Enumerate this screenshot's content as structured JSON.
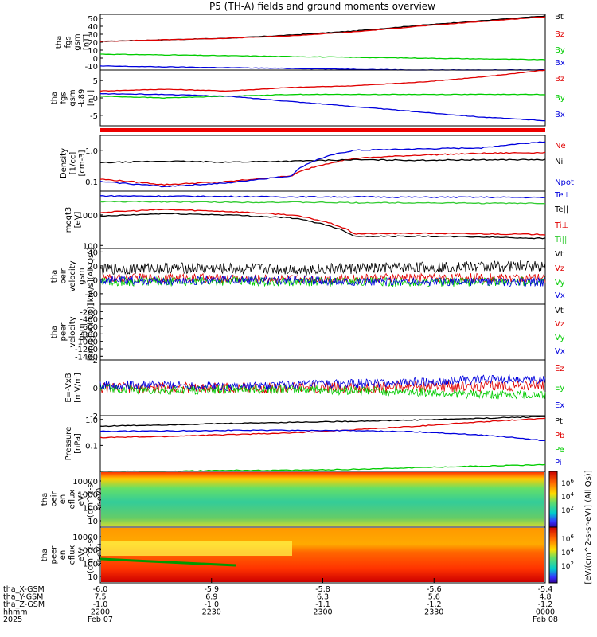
{
  "title": "P5 (TH-A) fields and ground moments overview",
  "colors": {
    "black": "#000000",
    "red": "#e00000",
    "green": "#00cc00",
    "blue": "#0000dd",
    "lime": "#33cc33"
  },
  "chart_data": [
    {
      "type": "line",
      "ylabel": [
        "tha",
        "fgs",
        "gsm",
        "[nT]"
      ],
      "yticks": [
        "50",
        "40",
        "30",
        "20",
        "10",
        "0",
        "-10"
      ],
      "ylim": [
        -15,
        55
      ],
      "series": [
        {
          "name": "Bt",
          "color": "black",
          "values": [
            21,
            23,
            25,
            29,
            34,
            41,
            47,
            53
          ]
        },
        {
          "name": "Bz",
          "color": "red",
          "values": [
            21,
            23,
            25,
            28,
            33,
            40,
            46,
            52
          ]
        },
        {
          "name": "By",
          "color": "green",
          "values": [
            5,
            4,
            3,
            2,
            1,
            0,
            -1,
            -2
          ]
        },
        {
          "name": "Bx",
          "color": "blue",
          "values": [
            -10,
            -11,
            -12,
            -13,
            -14,
            -15,
            -15,
            -15
          ]
        }
      ]
    },
    {
      "type": "line",
      "ylabel": [
        "tha",
        "fgs",
        "gsm",
        "-b89",
        "[nT]"
      ],
      "yticks": [
        "5",
        "0",
        "-5"
      ],
      "ylim": [
        -8,
        8
      ],
      "series": [
        {
          "name": "Bz",
          "color": "red",
          "values": [
            2,
            2.5,
            2,
            3,
            3.5,
            4.5,
            6,
            8
          ]
        },
        {
          "name": "By",
          "color": "green",
          "values": [
            0.5,
            0,
            0.5,
            1,
            1,
            1,
            1,
            1
          ]
        },
        {
          "name": "Bx",
          "color": "blue",
          "values": [
            1.2,
            1,
            0.5,
            -1,
            -2.5,
            -4,
            -5.5,
            -6.5
          ]
        }
      ]
    },
    {
      "type": "line",
      "log": true,
      "ylabel": [
        "Density",
        "[1/cc]",
        "[cm-3]"
      ],
      "yticks": [
        "1.0",
        "0.1"
      ],
      "ylim": [
        0.05,
        3
      ],
      "series": [
        {
          "name": "Ne",
          "color": "red",
          "values": [
            0.12,
            0.08,
            0.1,
            0.15,
            0.55,
            0.7,
            0.8,
            0.85
          ]
        },
        {
          "name": "Ni",
          "color": "black",
          "values": [
            0.4,
            0.45,
            0.42,
            0.45,
            0.5,
            0.48,
            0.5,
            0.5
          ]
        },
        {
          "name": "Npot",
          "color": "blue",
          "values": [
            0.1,
            0.07,
            0.09,
            0.15,
            1.0,
            1.1,
            1.2,
            1.9
          ]
        }
      ]
    },
    {
      "type": "line",
      "log": true,
      "ylabel": [
        "moqt3",
        "[eV]"
      ],
      "yticks": [
        "1000",
        "100"
      ],
      "ylim": [
        80,
        6000
      ],
      "series": [
        {
          "name": "Te⊥",
          "color": "blue",
          "values": [
            4200,
            4100,
            4000,
            3900,
            3900,
            3800,
            3800,
            3700
          ]
        },
        {
          "name": "Te||",
          "color": "black",
          "values": [
            900,
            1100,
            1000,
            800,
            200,
            200,
            190,
            170
          ]
        },
        {
          "name": "Ti⊥",
          "color": "red",
          "values": [
            1200,
            1500,
            1300,
            1000,
            240,
            250,
            240,
            230
          ]
        },
        {
          "name": "Ti||",
          "color": "lime",
          "values": [
            2700,
            2700,
            2600,
            2600,
            2500,
            2500,
            2400,
            2400
          ]
        }
      ]
    },
    {
      "type": "line",
      "ylabel": [
        "tha",
        "peir",
        "velocity",
        "gsm",
        "[km/s](All Qs)]"
      ],
      "yticks": [
        "40",
        "20",
        "0",
        "-20"
      ],
      "ylim": [
        -35,
        45
      ],
      "series": [
        {
          "name": "Vt",
          "color": "black",
          "values": [
            15,
            17,
            16,
            15,
            16,
            18,
            19,
            20
          ]
        },
        {
          "name": "Vz",
          "color": "red",
          "values": [
            2,
            3,
            2,
            1,
            2,
            3,
            3,
            2
          ]
        },
        {
          "name": "Vy",
          "color": "green",
          "values": [
            -2,
            -3,
            -2,
            -3,
            -2,
            -4,
            -3,
            -2
          ]
        },
        {
          "name": "Vx",
          "color": "blue",
          "values": [
            0,
            -2,
            0,
            -1,
            -2,
            -3,
            -4,
            -3
          ]
        }
      ]
    },
    {
      "type": "line",
      "ylabel": [
        "tha",
        "peer",
        "velocity",
        "gsm",
        "[km/s](All Qs)]"
      ],
      "yticks": [
        "-200",
        "-400",
        "-600",
        "-800",
        "-1000",
        "-1200",
        "-1400"
      ],
      "ylim": [
        -1500,
        0
      ],
      "series": [
        {
          "name": "Vt",
          "color": "black",
          "values": []
        },
        {
          "name": "Vz",
          "color": "red",
          "values": []
        },
        {
          "name": "Vy",
          "color": "green",
          "values": []
        },
        {
          "name": "Vx",
          "color": "blue",
          "values": []
        }
      ]
    },
    {
      "type": "line",
      "ylabel": [
        "E=-VxB",
        "[mV/m]"
      ],
      "yticks": [
        "2",
        "0",
        "-2"
      ],
      "ylim": [
        -2,
        2
      ],
      "series": [
        {
          "name": "Ez",
          "color": "red",
          "values": [
            0,
            0,
            0,
            0,
            0,
            0.1,
            0.1,
            0.2
          ]
        },
        {
          "name": "Ey",
          "color": "green",
          "values": [
            0,
            -0.2,
            -0.1,
            -0.1,
            -0.2,
            -0.3,
            -0.5,
            -0.5
          ]
        },
        {
          "name": "Ex",
          "color": "blue",
          "values": [
            0.2,
            0.2,
            0.1,
            0.2,
            0.3,
            0.4,
            0.6,
            0.6
          ]
        }
      ]
    },
    {
      "type": "line",
      "log": true,
      "ylabel": [
        "Pressure",
        "[nPa]"
      ],
      "yticks": [
        "1.0",
        "0.1"
      ],
      "ylim": [
        0.01,
        1.4
      ],
      "series": [
        {
          "name": "Pt",
          "color": "black",
          "values": [
            0.55,
            0.62,
            0.7,
            0.78,
            0.85,
            0.95,
            1.1,
            1.3
          ]
        },
        {
          "name": "Pb",
          "color": "red",
          "values": [
            0.2,
            0.22,
            0.26,
            0.3,
            0.4,
            0.55,
            0.8,
            1.1
          ]
        },
        {
          "name": "Pe",
          "color": "green",
          "values": [
            0.01,
            0.01,
            0.011,
            0.011,
            0.012,
            0.014,
            0.016,
            0.018
          ]
        },
        {
          "name": "Pi",
          "color": "blue",
          "values": [
            0.35,
            0.36,
            0.38,
            0.38,
            0.37,
            0.33,
            0.25,
            0.15
          ]
        }
      ]
    },
    {
      "type": "heatmap",
      "ylabel": [
        "tha",
        "peir",
        "en",
        "eflux",
        "eV/",
        "(cm^2-s-",
        "sr-eV)"
      ],
      "yticks": [
        "10000",
        "1000",
        "100",
        "10"
      ]
    },
    {
      "type": "heatmap",
      "ylabel": [
        "tha",
        "peer",
        "en",
        "eflux",
        "eV/",
        "(cm^2-s-",
        "sr-eV)"
      ],
      "yticks": [
        "10000",
        "1000",
        "100",
        "10"
      ]
    }
  ],
  "colorbar": {
    "label": "[eV/(cm^2-s-sr-eV)] (All Qs)]",
    "ticks": [
      "10^6",
      "10^4",
      "10^2"
    ]
  },
  "xaxis": {
    "rows": [
      {
        "label": "tha_X-GSM",
        "values": [
          "-6.0",
          "-5.9",
          "-5.8",
          "-5.6",
          "-5.4"
        ]
      },
      {
        "label": "tha_Y-GSM",
        "values": [
          "7.5",
          "6.9",
          "6.3",
          "5.6",
          "4.8"
        ]
      },
      {
        "label": "tha_Z-GSM",
        "values": [
          "-1.0",
          "-1.0",
          "-1.1",
          "-1.2",
          "-1.2"
        ]
      },
      {
        "label": "hhmm",
        "values": [
          "2200",
          "2230",
          "2300",
          "2330",
          "0000"
        ]
      },
      {
        "label": "2025",
        "values": [
          "Feb 07",
          "",
          "",
          "",
          "Feb 08"
        ]
      }
    ]
  }
}
